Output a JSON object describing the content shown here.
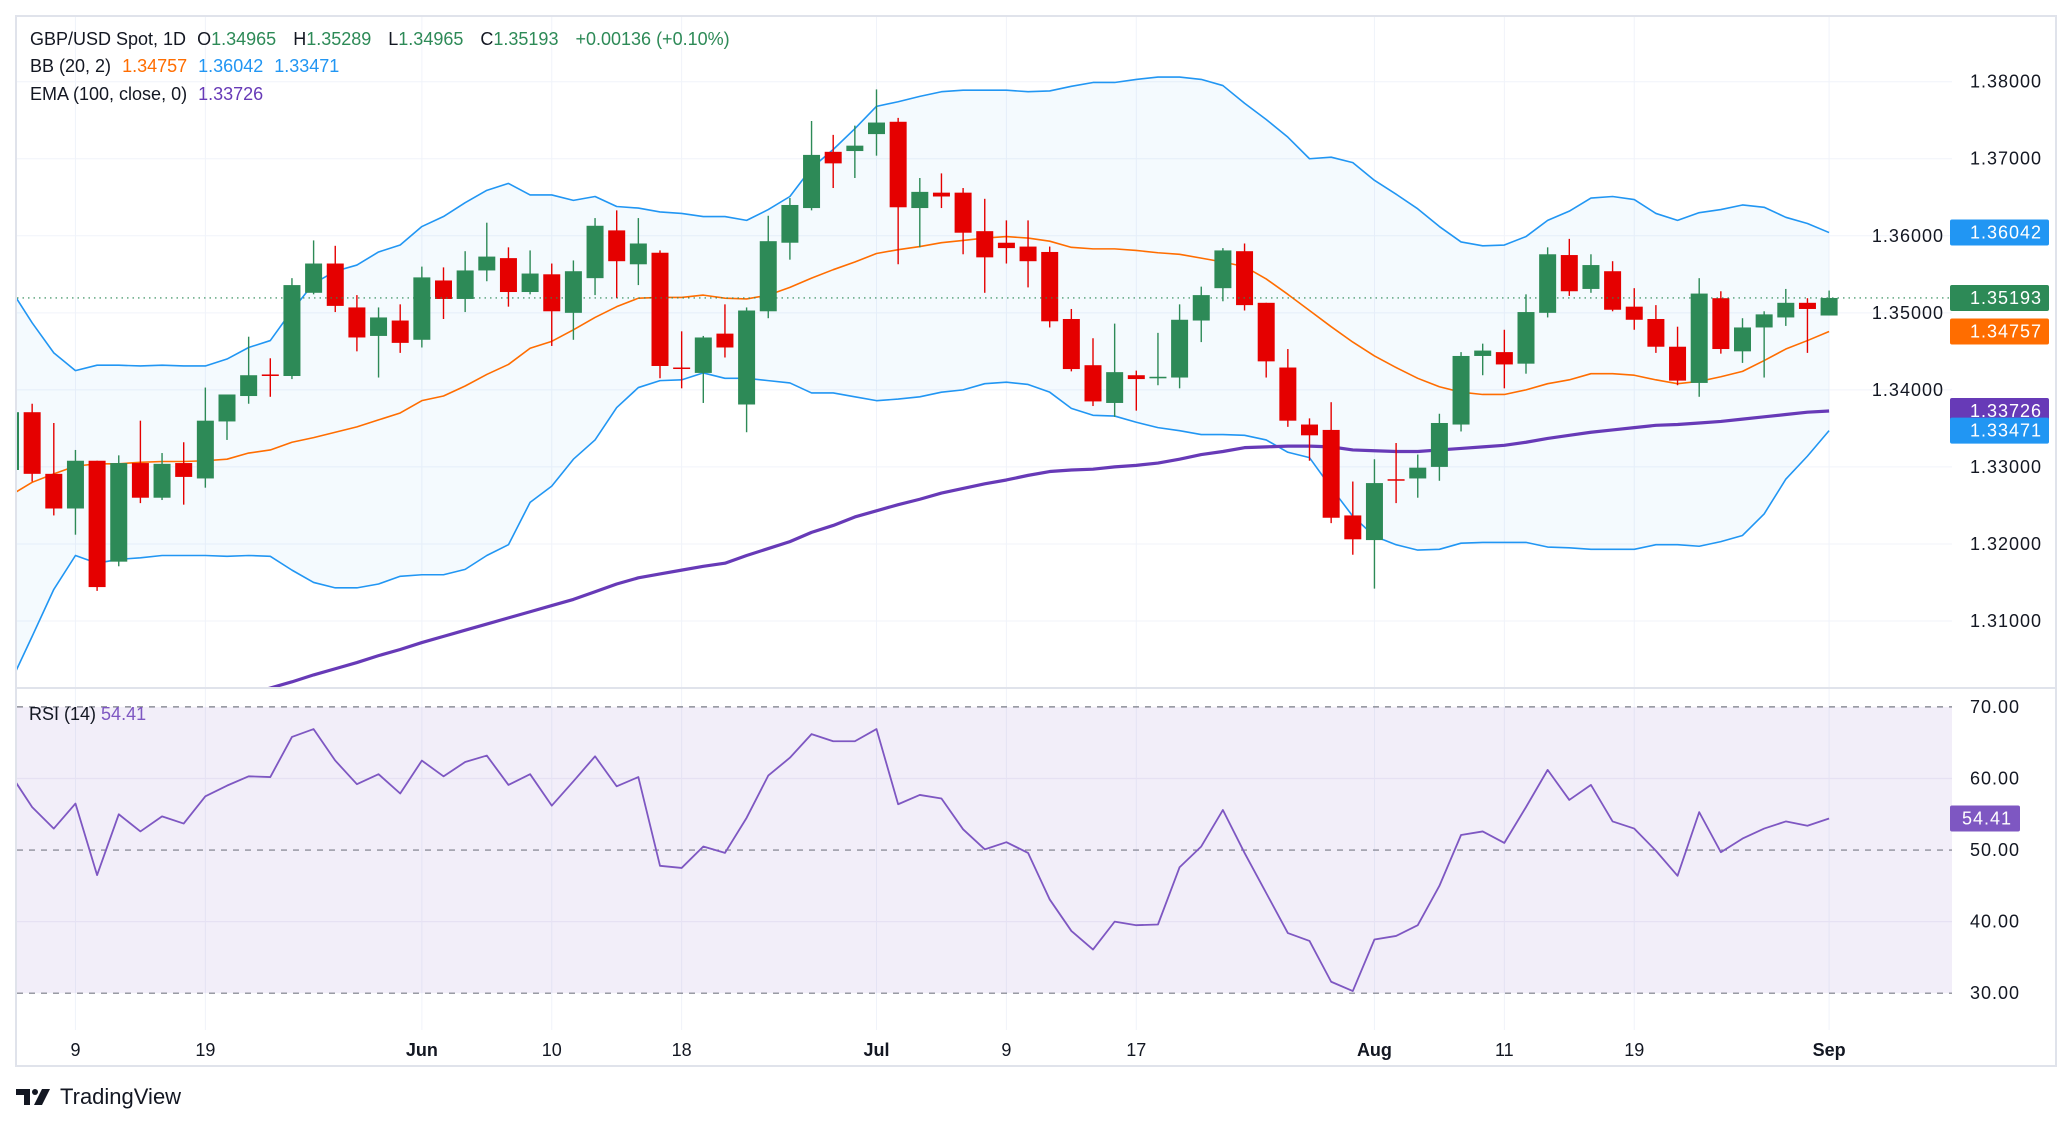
{
  "legend": {
    "symbol": "GBP/USD Spot, 1D",
    "open_label": "O",
    "open": "1.34965",
    "high_label": "H",
    "high": "1.35289",
    "low_label": "L",
    "low": "1.34965",
    "close_label": "C",
    "close": "1.35193",
    "change": "+0.00136 (+0.10%)",
    "bb_label": "BB (20, 2)",
    "bb_mid": "1.34757",
    "bb_upper": "1.36042",
    "bb_lower": "1.33471",
    "ema_label": "EMA (100, close, 0)",
    "ema": "1.33726",
    "rsi_label": "RSI (14)",
    "rsi": "54.41"
  },
  "brand": {
    "name": "TradingView",
    "icon": "tradingview-logo-icon"
  },
  "colors": {
    "up": "#2d8a57",
    "down": "#e50000",
    "bb_mid": "#ff6d00",
    "bb_band": "#2196f3",
    "ema": "#673ab7",
    "rsi": "#7e57c2"
  },
  "chart_data": [
    {
      "type": "candlestick",
      "ylim": [
        1.3013,
        1.3884
      ],
      "y_ticks": [
        "1.38000",
        "1.37000",
        "1.36000",
        "1.35000",
        "1.34000",
        "1.33000",
        "1.32000",
        "1.31000"
      ],
      "x_labels": [
        {
          "bar": 3,
          "text": "9",
          "bold": false
        },
        {
          "bar": 9,
          "text": "19",
          "bold": false
        },
        {
          "bar": 19,
          "text": "Jun",
          "bold": true
        },
        {
          "bar": 25,
          "text": "10",
          "bold": false
        },
        {
          "bar": 31,
          "text": "18",
          "bold": false
        },
        {
          "bar": 40,
          "text": "Jul",
          "bold": true
        },
        {
          "bar": 46,
          "text": "9",
          "bold": false
        },
        {
          "bar": 52,
          "text": "17",
          "bold": false
        },
        {
          "bar": 63,
          "text": "Aug",
          "bold": true
        },
        {
          "bar": 69,
          "text": "11",
          "bold": false
        },
        {
          "bar": 75,
          "text": "19",
          "bold": false
        },
        {
          "bar": 84,
          "text": "Sep",
          "bold": true
        }
      ],
      "grid": true,
      "ohlc": [
        [
          1.3296,
          1.3385,
          1.329,
          1.3371
        ],
        [
          1.3371,
          1.3382,
          1.3281,
          1.3291
        ],
        [
          1.3291,
          1.3357,
          1.3237,
          1.3246
        ],
        [
          1.3246,
          1.3322,
          1.3212,
          1.3308
        ],
        [
          1.3308,
          1.3308,
          1.3139,
          1.3144
        ],
        [
          1.3177,
          1.3315,
          1.3171,
          1.3305
        ],
        [
          1.3305,
          1.336,
          1.3253,
          1.326
        ],
        [
          1.326,
          1.3318,
          1.3257,
          1.3304
        ],
        [
          1.3305,
          1.3332,
          1.3251,
          1.3287
        ],
        [
          1.3285,
          1.3403,
          1.3273,
          1.336
        ],
        [
          1.3359,
          1.3394,
          1.3335,
          1.3394
        ],
        [
          1.3392,
          1.3469,
          1.3382,
          1.3419
        ],
        [
          1.342,
          1.3441,
          1.3391,
          1.3418
        ],
        [
          1.3418,
          1.3545,
          1.3414,
          1.3536
        ],
        [
          1.3526,
          1.3594,
          1.3524,
          1.3564
        ],
        [
          1.3564,
          1.3587,
          1.3501,
          1.3509
        ],
        [
          1.3507,
          1.3523,
          1.345,
          1.3468
        ],
        [
          1.347,
          1.3507,
          1.3416,
          1.3494
        ],
        [
          1.349,
          1.3511,
          1.3448,
          1.3461
        ],
        [
          1.3465,
          1.356,
          1.3455,
          1.3546
        ],
        [
          1.3542,
          1.3559,
          1.3492,
          1.3518
        ],
        [
          1.3518,
          1.358,
          1.3501,
          1.3555
        ],
        [
          1.3555,
          1.3617,
          1.3541,
          1.3573
        ],
        [
          1.3571,
          1.3585,
          1.3508,
          1.3527
        ],
        [
          1.3527,
          1.3581,
          1.3524,
          1.3551
        ],
        [
          1.355,
          1.3564,
          1.3457,
          1.3502
        ],
        [
          1.35,
          1.3568,
          1.3465,
          1.3554
        ],
        [
          1.3545,
          1.3623,
          1.3523,
          1.3613
        ],
        [
          1.3607,
          1.3633,
          1.3519,
          1.3567
        ],
        [
          1.3563,
          1.3623,
          1.3536,
          1.359
        ],
        [
          1.3578,
          1.3581,
          1.3415,
          1.3431
        ],
        [
          1.3429,
          1.3476,
          1.3402,
          1.3428
        ],
        [
          1.3422,
          1.347,
          1.3383,
          1.3468
        ],
        [
          1.3473,
          1.3511,
          1.3442,
          1.3455
        ],
        [
          1.3381,
          1.3507,
          1.3345,
          1.3503
        ],
        [
          1.3502,
          1.3626,
          1.3493,
          1.3593
        ],
        [
          1.3591,
          1.3649,
          1.3569,
          1.364
        ],
        [
          1.3636,
          1.3749,
          1.3633,
          1.3705
        ],
        [
          1.3709,
          1.3731,
          1.3662,
          1.3694
        ],
        [
          1.371,
          1.3743,
          1.3675,
          1.3717
        ],
        [
          1.3732,
          1.379,
          1.3704,
          1.3747
        ],
        [
          1.3748,
          1.3753,
          1.3563,
          1.3637
        ],
        [
          1.3636,
          1.3675,
          1.3585,
          1.3657
        ],
        [
          1.3656,
          1.3681,
          1.3636,
          1.3651
        ],
        [
          1.3656,
          1.3662,
          1.3576,
          1.3604
        ],
        [
          1.3606,
          1.3648,
          1.3526,
          1.3572
        ],
        [
          1.3591,
          1.362,
          1.3564,
          1.3584
        ],
        [
          1.3586,
          1.362,
          1.3533,
          1.3567
        ],
        [
          1.3579,
          1.3586,
          1.3481,
          1.3489
        ],
        [
          1.3492,
          1.3505,
          1.3424,
          1.3427
        ],
        [
          1.3432,
          1.3467,
          1.3379,
          1.3385
        ],
        [
          1.3383,
          1.3486,
          1.3365,
          1.3423
        ],
        [
          1.3419,
          1.3425,
          1.3373,
          1.3414
        ],
        [
          1.3415,
          1.3474,
          1.3406,
          1.3417
        ],
        [
          1.3416,
          1.3511,
          1.3402,
          1.3491
        ],
        [
          1.349,
          1.3534,
          1.3462,
          1.3523
        ],
        [
          1.3532,
          1.3584,
          1.3515,
          1.3581
        ],
        [
          1.358,
          1.359,
          1.3503,
          1.351
        ],
        [
          1.3513,
          1.3513,
          1.3416,
          1.3437
        ],
        [
          1.3429,
          1.3453,
          1.3352,
          1.336
        ],
        [
          1.3355,
          1.3363,
          1.3308,
          1.3341
        ],
        [
          1.3348,
          1.3384,
          1.3227,
          1.3234
        ],
        [
          1.3237,
          1.3281,
          1.3186,
          1.3206
        ],
        [
          1.3205,
          1.331,
          1.3142,
          1.3279
        ],
        [
          1.3284,
          1.3331,
          1.3253,
          1.3283
        ],
        [
          1.3285,
          1.3316,
          1.326,
          1.3299
        ],
        [
          1.33,
          1.3369,
          1.3282,
          1.3357
        ],
        [
          1.3355,
          1.3449,
          1.3346,
          1.3444
        ],
        [
          1.3444,
          1.346,
          1.3419,
          1.3451
        ],
        [
          1.3449,
          1.3478,
          1.3402,
          1.3433
        ],
        [
          1.3434,
          1.3524,
          1.3421,
          1.3501
        ],
        [
          1.35,
          1.3585,
          1.3494,
          1.3576
        ],
        [
          1.3575,
          1.3596,
          1.3522,
          1.3528
        ],
        [
          1.3531,
          1.3576,
          1.3526,
          1.3562
        ],
        [
          1.3554,
          1.3567,
          1.3502,
          1.3504
        ],
        [
          1.3508,
          1.3532,
          1.3478,
          1.3491
        ],
        [
          1.3492,
          1.351,
          1.3448,
          1.3456
        ],
        [
          1.3456,
          1.3482,
          1.3406,
          1.3412
        ],
        [
          1.3409,
          1.3545,
          1.3391,
          1.3525
        ],
        [
          1.3519,
          1.3528,
          1.3447,
          1.3453
        ],
        [
          1.345,
          1.3493,
          1.3435,
          1.3481
        ],
        [
          1.3481,
          1.3502,
          1.3416,
          1.3498
        ],
        [
          1.3494,
          1.3531,
          1.3483,
          1.3513
        ],
        [
          1.3513,
          1.3519,
          1.3448,
          1.3505
        ],
        [
          1.34965,
          1.35289,
          1.34965,
          1.35193
        ]
      ],
      "bb_upper": [
        1.3531,
        1.3487,
        1.3448,
        1.3425,
        1.3432,
        1.3432,
        1.3431,
        1.3432,
        1.3431,
        1.3431,
        1.344,
        1.3455,
        1.3464,
        1.3503,
        1.3538,
        1.3554,
        1.3562,
        1.3579,
        1.3588,
        1.3612,
        1.3625,
        1.3643,
        1.3659,
        1.3668,
        1.3653,
        1.3653,
        1.3646,
        1.3651,
        1.3638,
        1.3636,
        1.3631,
        1.3629,
        1.3625,
        1.3625,
        1.362,
        1.3634,
        1.3651,
        1.3688,
        1.3712,
        1.3739,
        1.3768,
        1.3774,
        1.3781,
        1.3787,
        1.3789,
        1.3789,
        1.3789,
        1.3787,
        1.3788,
        1.3794,
        1.3799,
        1.3799,
        1.3803,
        1.3806,
        1.3806,
        1.3803,
        1.3795,
        1.3772,
        1.3751,
        1.3728,
        1.37,
        1.3702,
        1.3695,
        1.3672,
        1.3654,
        1.3635,
        1.3612,
        1.3592,
        1.3587,
        1.3588,
        1.3599,
        1.362,
        1.3632,
        1.3649,
        1.3651,
        1.3647,
        1.3629,
        1.362,
        1.363,
        1.3634,
        1.364,
        1.3637,
        1.3624,
        1.3616,
        1.36042
      ],
      "bb_mid": [
        1.3263,
        1.328,
        1.3291,
        1.3301,
        1.3304,
        1.3304,
        1.3306,
        1.3307,
        1.3307,
        1.3308,
        1.331,
        1.3318,
        1.3322,
        1.3332,
        1.3338,
        1.3345,
        1.3352,
        1.3361,
        1.337,
        1.3386,
        1.3392,
        1.3405,
        1.342,
        1.3433,
        1.3454,
        1.3463,
        1.3478,
        1.3494,
        1.3508,
        1.3519,
        1.352,
        1.352,
        1.3523,
        1.3519,
        1.3518,
        1.3523,
        1.3533,
        1.3545,
        1.3556,
        1.3566,
        1.3577,
        1.3582,
        1.3586,
        1.3591,
        1.3594,
        1.3597,
        1.3599,
        1.3597,
        1.3593,
        1.3585,
        1.3583,
        1.3583,
        1.3581,
        1.3578,
        1.3576,
        1.3571,
        1.3566,
        1.356,
        1.3544,
        1.3524,
        1.3503,
        1.3482,
        1.3462,
        1.3444,
        1.3429,
        1.3415,
        1.3404,
        1.3397,
        1.3394,
        1.3394,
        1.34,
        1.3408,
        1.3413,
        1.3421,
        1.3421,
        1.3419,
        1.3413,
        1.3408,
        1.3411,
        1.3417,
        1.3424,
        1.3438,
        1.3453,
        1.3464,
        1.34757
      ],
      "bb_lower": [
        1.302,
        1.308,
        1.3141,
        1.3185,
        1.3175,
        1.318,
        1.3182,
        1.3185,
        1.3185,
        1.3185,
        1.3184,
        1.3185,
        1.3184,
        1.3166,
        1.315,
        1.3143,
        1.3143,
        1.3148,
        1.3158,
        1.316,
        1.316,
        1.3167,
        1.3185,
        1.3199,
        1.3254,
        1.3275,
        1.331,
        1.3335,
        1.3377,
        1.3403,
        1.3412,
        1.3413,
        1.3422,
        1.3415,
        1.3415,
        1.3412,
        1.3409,
        1.3396,
        1.3396,
        1.3391,
        1.3386,
        1.3388,
        1.3391,
        1.3397,
        1.34,
        1.3408,
        1.341,
        1.3407,
        1.3397,
        1.3376,
        1.3367,
        1.3366,
        1.3358,
        1.3351,
        1.3347,
        1.3342,
        1.3342,
        1.3341,
        1.3335,
        1.3319,
        1.3312,
        1.3273,
        1.3236,
        1.321,
        1.3199,
        1.3192,
        1.3193,
        1.3201,
        1.3202,
        1.3202,
        1.3202,
        1.3196,
        1.3195,
        1.3193,
        1.3193,
        1.3193,
        1.3199,
        1.3199,
        1.3197,
        1.3203,
        1.3211,
        1.3239,
        1.3284,
        1.3314,
        1.33471
      ],
      "ema": [
        1.2935,
        1.294,
        1.2945,
        1.295,
        1.2956,
        1.2962,
        1.2968,
        1.2975,
        1.2982,
        1.2989,
        1.2997,
        1.3005,
        1.3013,
        1.3021,
        1.303,
        1.3038,
        1.3046,
        1.3055,
        1.3063,
        1.3072,
        1.308,
        1.3088,
        1.3096,
        1.3104,
        1.3112,
        1.312,
        1.3128,
        1.3138,
        1.3148,
        1.3156,
        1.3161,
        1.3166,
        1.3171,
        1.3175,
        1.3185,
        1.3194,
        1.3203,
        1.3215,
        1.3224,
        1.3235,
        1.3243,
        1.3251,
        1.3258,
        1.3266,
        1.3272,
        1.3278,
        1.3283,
        1.3289,
        1.3294,
        1.3296,
        1.3297,
        1.33,
        1.3302,
        1.3305,
        1.331,
        1.3316,
        1.332,
        1.3325,
        1.3326,
        1.3327,
        1.3327,
        1.3326,
        1.3322,
        1.3321,
        1.332,
        1.332,
        1.3322,
        1.3324,
        1.3326,
        1.3328,
        1.3332,
        1.3337,
        1.3341,
        1.3345,
        1.3348,
        1.3351,
        1.3354,
        1.3355,
        1.3357,
        1.3359,
        1.3362,
        1.3365,
        1.3368,
        1.3371,
        1.33726
      ],
      "price_labels": [
        {
          "value": 1.36042,
          "text": "1.36042",
          "color": "#2196f3"
        },
        {
          "value": 1.35193,
          "text": "1.35193",
          "color": "#2d8a57"
        },
        {
          "value": 1.34757,
          "text": "1.34757",
          "color": "#ff6d00"
        },
        {
          "value": 1.33726,
          "text": "1.33726",
          "color": "#673ab7"
        },
        {
          "value": 1.33471,
          "text": "1.33471",
          "color": "#2196f3"
        }
      ]
    },
    {
      "type": "line",
      "ylim": [
        25,
        72.5
      ],
      "y_ticks": [
        "70.00",
        "60.00",
        "50.00",
        "40.00",
        "30.00"
      ],
      "bands": [
        70,
        50,
        30
      ],
      "rsi": [
        60.6,
        56.0,
        53.0,
        56.5,
        46.5,
        55.0,
        52.6,
        54.7,
        53.7,
        57.5,
        59.0,
        60.3,
        60.2,
        65.8,
        66.9,
        62.5,
        59.2,
        60.6,
        57.9,
        62.5,
        60.3,
        62.3,
        63.2,
        59.1,
        60.6,
        56.2,
        59.6,
        63.1,
        58.9,
        60.2,
        47.8,
        47.5,
        50.5,
        49.6,
        54.5,
        60.4,
        62.9,
        66.2,
        65.2,
        65.2,
        66.9,
        56.4,
        57.7,
        57.2,
        52.9,
        50.1,
        51.1,
        49.6,
        43.1,
        38.7,
        36.1,
        40.0,
        39.5,
        39.6,
        47.6,
        50.5,
        55.6,
        49.6,
        44.0,
        38.4,
        37.3,
        31.6,
        30.3,
        37.5,
        38.0,
        39.5,
        45.0,
        52.1,
        52.6,
        51.0,
        56.0,
        61.2,
        57.0,
        59.1,
        54.0,
        53.0,
        49.9,
        46.4,
        55.3,
        49.7,
        51.6,
        53.0,
        54.0,
        53.4,
        54.41
      ],
      "last_label": {
        "value": 54.41,
        "text": "54.41",
        "color": "#7e57c2"
      }
    }
  ]
}
